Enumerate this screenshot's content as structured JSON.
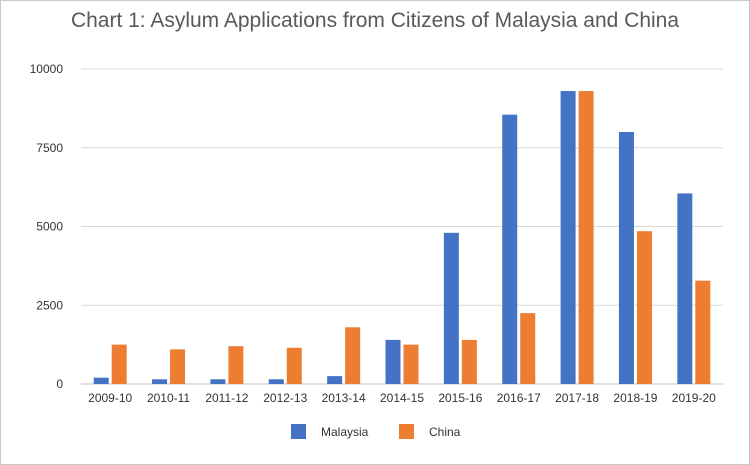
{
  "chart_data": {
    "type": "bar",
    "title": "Chart 1: Asylum Applications from Citizens of Malaysia and China",
    "xlabel": "",
    "ylabel": "",
    "categories": [
      "2009-10",
      "2010-11",
      "2011-12",
      "2012-13",
      "2013-14",
      "2014-15",
      "2015-16",
      "2016-17",
      "2017-18",
      "2018-19",
      "2019-20"
    ],
    "series": [
      {
        "name": "Malaysia",
        "color": "#4472c4",
        "values": [
          200,
          150,
          150,
          150,
          250,
          1400,
          4800,
          8550,
          9300,
          8000,
          6050
        ]
      },
      {
        "name": "China",
        "color": "#ed7d31",
        "values": [
          1250,
          1100,
          1200,
          1150,
          1800,
          1250,
          1400,
          2250,
          9300,
          4850,
          3280
        ]
      }
    ],
    "ylim": [
      0,
      10000
    ],
    "yticks": [
      0,
      2500,
      5000,
      7500,
      10000
    ],
    "grid": true,
    "legend": "bottom-center"
  }
}
